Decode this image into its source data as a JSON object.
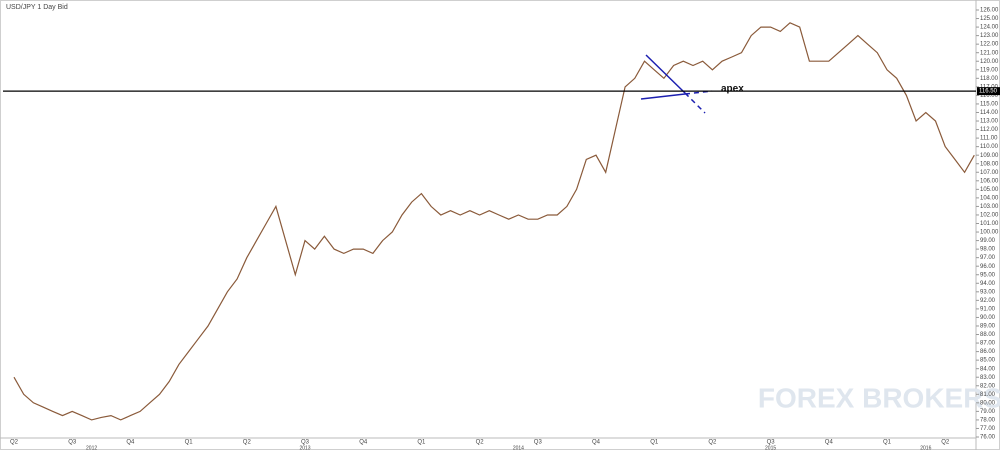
{
  "chart_data": {
    "type": "line",
    "title": "USD/JPY  1 Day Bid",
    "color": "#8a5a3a",
    "categories": [
      "Q2",
      null,
      null,
      null,
      null,
      null,
      "Q3",
      null,
      null,
      null,
      null,
      null,
      "Q4",
      null,
      null,
      null,
      null,
      null,
      "Q1",
      null,
      null,
      null,
      null,
      null,
      "Q2",
      null,
      null,
      null,
      null,
      null,
      "Q3",
      null,
      null,
      null,
      null,
      null,
      "Q4",
      null,
      null,
      null,
      null,
      null,
      "Q1",
      null,
      null,
      null,
      null,
      null,
      "Q2",
      null,
      null,
      null,
      null,
      null,
      "Q3",
      null,
      null,
      null,
      null,
      null,
      "Q4",
      null,
      null,
      null,
      null,
      null,
      "Q1",
      null,
      null,
      null,
      null,
      null,
      "Q2",
      null,
      null,
      null,
      null,
      null,
      "Q3",
      null,
      null,
      null,
      null,
      null,
      "Q4",
      null,
      null,
      null,
      null,
      null,
      "Q1",
      null,
      null,
      null,
      null,
      null,
      "Q2",
      null,
      null,
      null
    ],
    "year_labels": [
      null,
      null,
      null,
      null,
      null,
      null,
      null,
      null,
      "2012",
      null,
      null,
      null,
      null,
      null,
      null,
      null,
      null,
      null,
      null,
      null,
      null,
      null,
      null,
      null,
      null,
      null,
      null,
      null,
      null,
      null,
      "2013",
      null,
      null,
      null,
      null,
      null,
      null,
      null,
      null,
      null,
      null,
      null,
      null,
      null,
      null,
      null,
      null,
      null,
      null,
      null,
      null,
      null,
      "2014",
      null,
      null,
      null,
      null,
      null,
      null,
      null,
      null,
      null,
      null,
      null,
      null,
      null,
      null,
      null,
      null,
      null,
      null,
      null,
      null,
      null,
      null,
      null,
      null,
      null,
      "2015",
      null,
      null,
      null,
      null,
      null,
      null,
      null,
      null,
      null,
      null,
      null,
      null,
      null,
      null,
      null,
      "2016",
      null,
      null,
      null,
      null,
      null
    ],
    "values": [
      83,
      81,
      80,
      79.5,
      79,
      78.5,
      79,
      78.5,
      78,
      78.3,
      78.5,
      78,
      78.5,
      79,
      80,
      81,
      82.5,
      84.5,
      86,
      87.5,
      89,
      91,
      93,
      94.5,
      97,
      99,
      101,
      103,
      99,
      95,
      99,
      98,
      99.5,
      98,
      97.5,
      98,
      98,
      97.5,
      99,
      100,
      102,
      103.5,
      104.5,
      103,
      102,
      102.5,
      102,
      102.5,
      102,
      102.5,
      102,
      101.5,
      102,
      101.5,
      101.5,
      102,
      102,
      103,
      105,
      108.5,
      109,
      107,
      112,
      117,
      118,
      120,
      119,
      118,
      119.5,
      120,
      119.5,
      120,
      119,
      120,
      120.5,
      121,
      123,
      124,
      124,
      123.5,
      124.5,
      124,
      120,
      120,
      120,
      121,
      122,
      123,
      122,
      121,
      119,
      118,
      116,
      113,
      114,
      113,
      110,
      108.5,
      107,
      109
    ],
    "ylim": [
      76,
      126
    ],
    "yticks": [
      {
        "value": 76,
        "label": "76.00"
      },
      {
        "value": 77,
        "label": "77.00"
      },
      {
        "value": 78,
        "label": "78.00"
      },
      {
        "value": 79,
        "label": "79.00"
      },
      {
        "value": 80,
        "label": "80.00"
      },
      {
        "value": 81,
        "label": "81.00"
      },
      {
        "value": 82,
        "label": "82.00"
      },
      {
        "value": 83,
        "label": "83.00"
      },
      {
        "value": 84,
        "label": "84.00"
      },
      {
        "value": 85,
        "label": "85.00"
      },
      {
        "value": 86,
        "label": "86.00"
      },
      {
        "value": 87,
        "label": "87.00"
      },
      {
        "value": 88,
        "label": "88.00"
      },
      {
        "value": 89,
        "label": "89.00"
      },
      {
        "value": 90,
        "label": "90.00"
      },
      {
        "value": 91,
        "label": "91.00"
      },
      {
        "value": 92,
        "label": "92.00"
      },
      {
        "value": 93,
        "label": "93.00"
      },
      {
        "value": 94,
        "label": "94.00"
      },
      {
        "value": 95,
        "label": "95.00"
      },
      {
        "value": 96,
        "label": "96.00"
      },
      {
        "value": 97,
        "label": "97.00"
      },
      {
        "value": 98,
        "label": "98.00"
      },
      {
        "value": 99,
        "label": "99.00"
      },
      {
        "value": 100,
        "label": "100.00"
      },
      {
        "value": 101,
        "label": "101.00"
      },
      {
        "value": 102,
        "label": "102.00"
      },
      {
        "value": 103,
        "label": "103.00"
      },
      {
        "value": 104,
        "label": "104.00"
      },
      {
        "value": 105,
        "label": "105.00"
      },
      {
        "value": 106,
        "label": "106.00"
      },
      {
        "value": 107,
        "label": "107.00"
      },
      {
        "value": 108,
        "label": "108.00"
      },
      {
        "value": 109,
        "label": "109.00"
      },
      {
        "value": 110,
        "label": "110.00"
      },
      {
        "value": 111,
        "label": "111.00"
      },
      {
        "value": 112,
        "label": "112.00"
      },
      {
        "value": 113,
        "label": "113.00"
      },
      {
        "value": 114,
        "label": "114.00"
      },
      {
        "value": 115,
        "label": "115.00"
      },
      {
        "value": 116,
        "label": "116.00"
      },
      {
        "value": 117,
        "label": "117.00"
      },
      {
        "value": 118,
        "label": "118.00"
      },
      {
        "value": 119,
        "label": "119.00"
      },
      {
        "value": 120,
        "label": "120.00"
      },
      {
        "value": 121,
        "label": "121.00"
      },
      {
        "value": 122,
        "label": "122.00"
      },
      {
        "value": 123,
        "label": "123.00"
      },
      {
        "value": 124,
        "label": "124.00"
      },
      {
        "value": 125,
        "label": "125.00"
      },
      {
        "value": 126,
        "label": "126.00"
      }
    ],
    "hline": {
      "value": 116.5,
      "label": "116.50"
    },
    "annotation": "apex",
    "watermark": "FOREX BROKERS"
  }
}
